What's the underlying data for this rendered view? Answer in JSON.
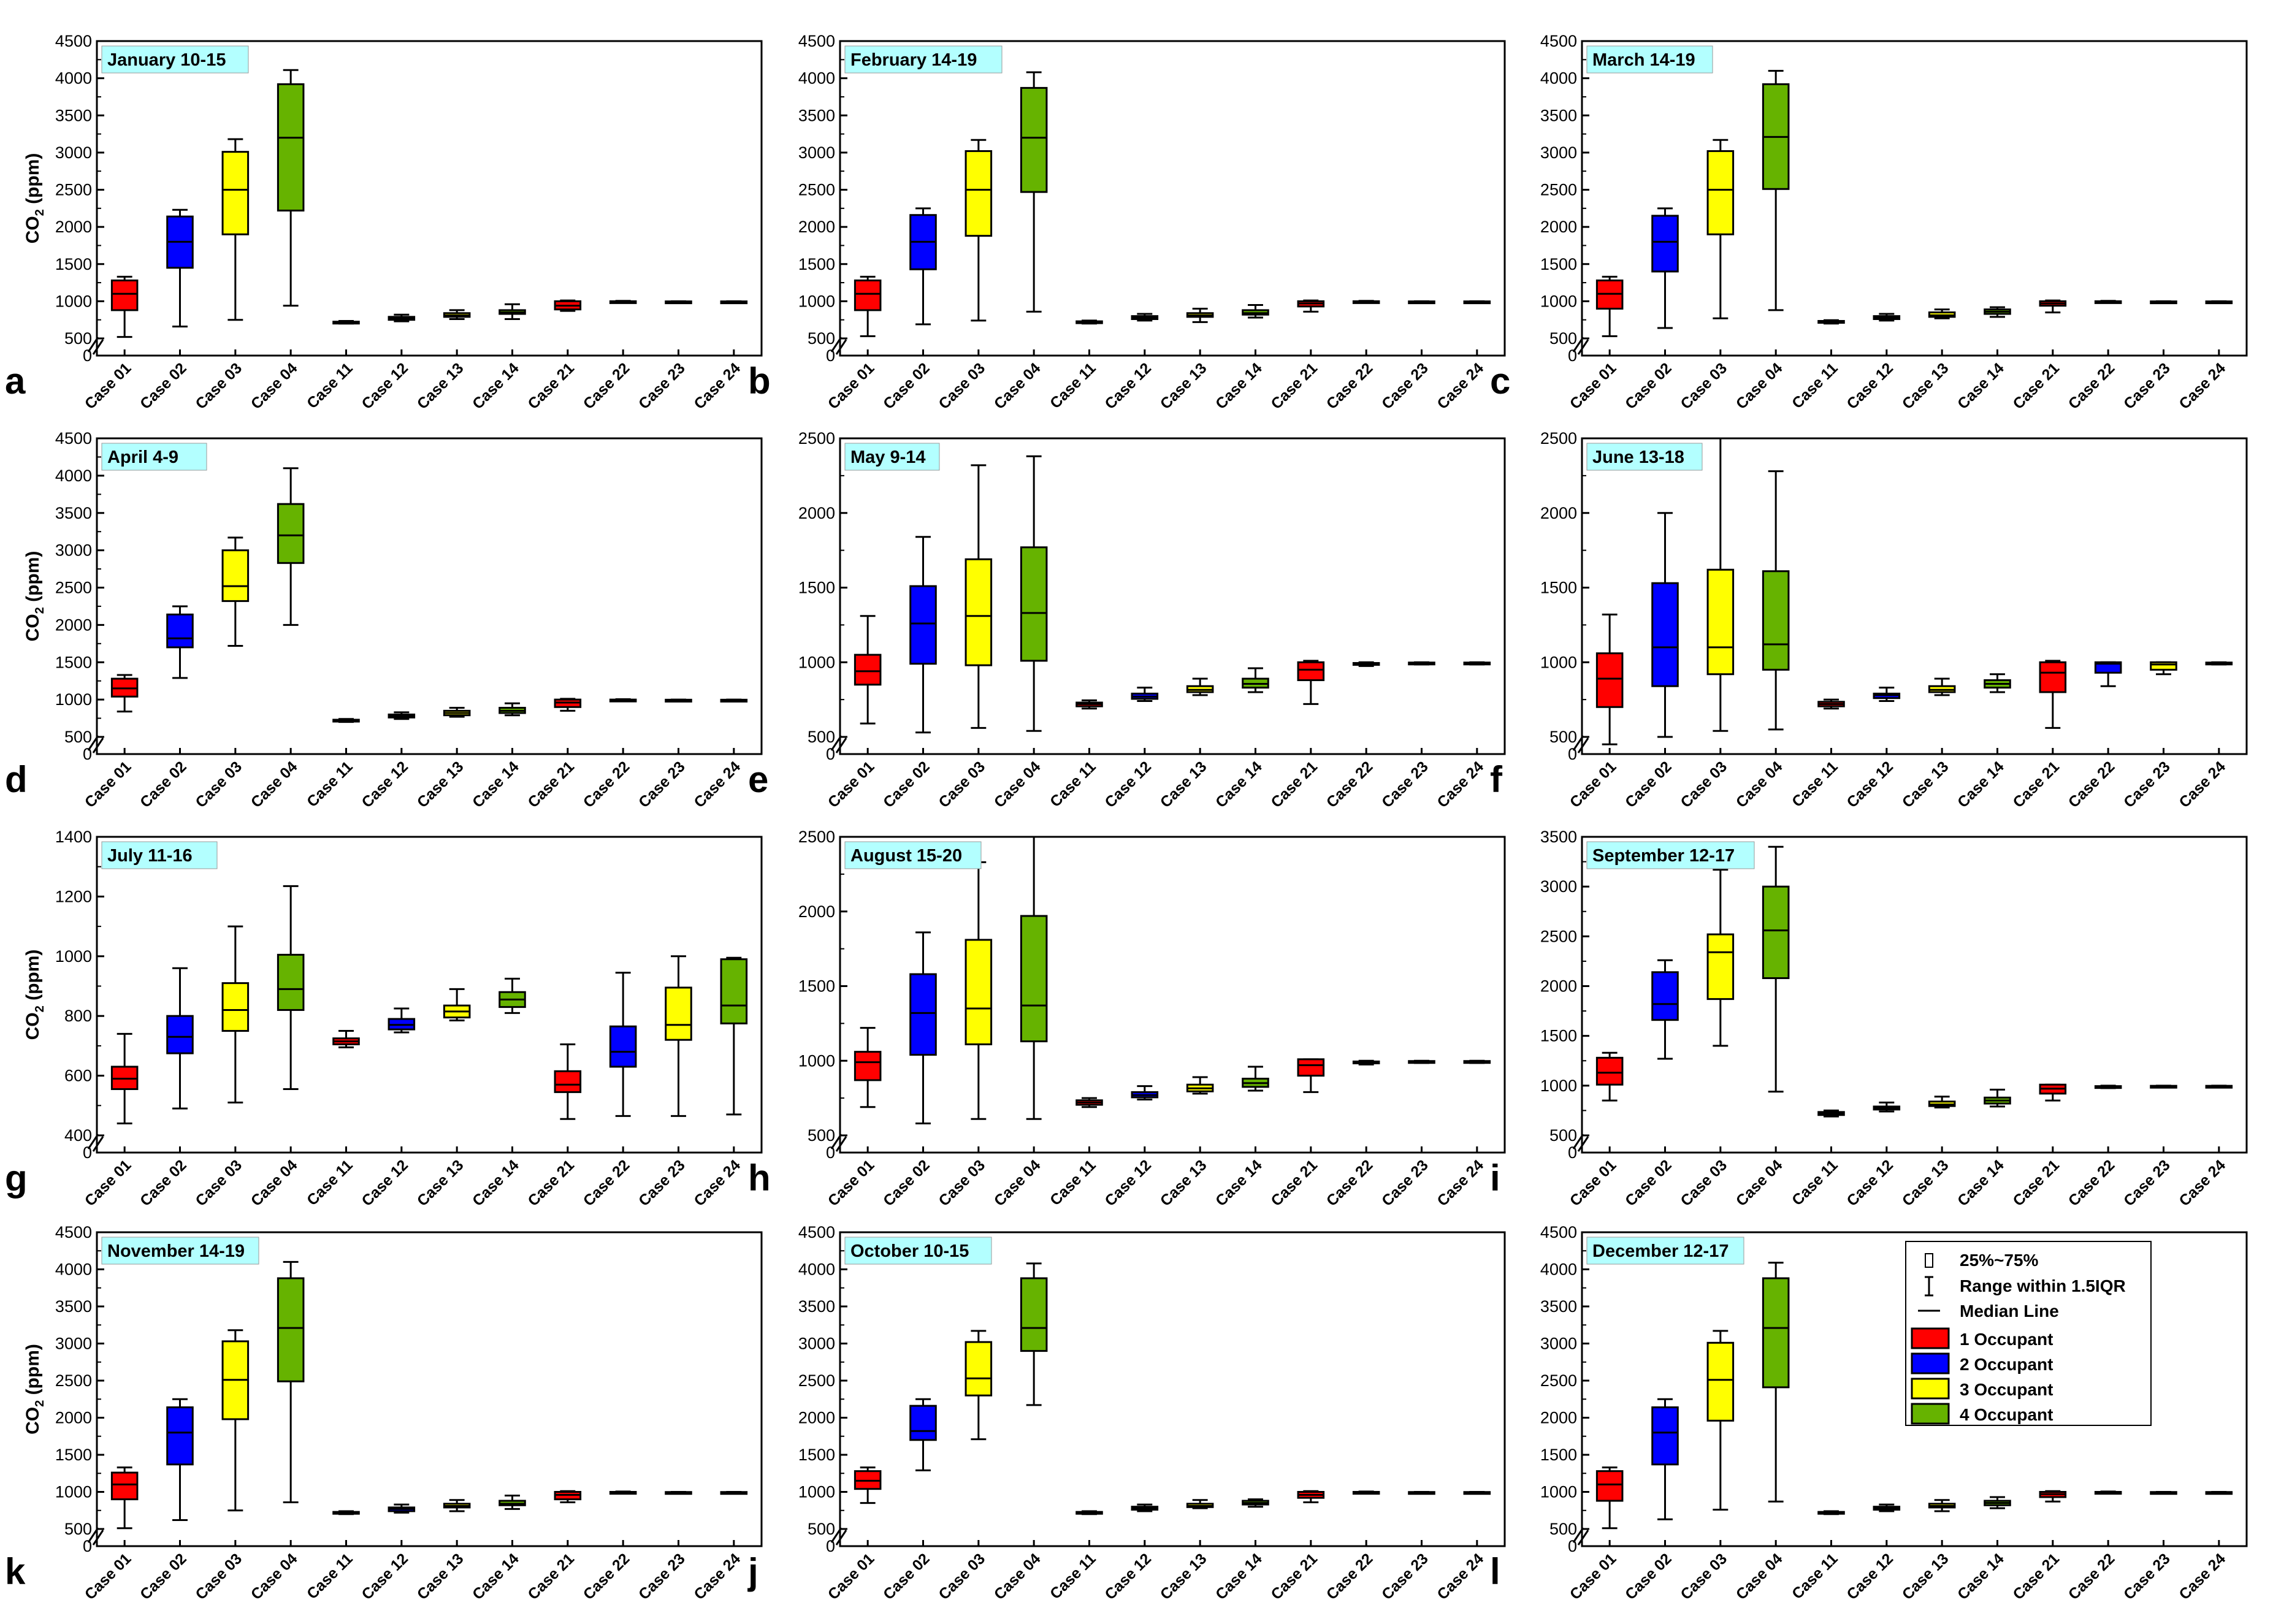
{
  "figure": {
    "categories": [
      "Case 01",
      "Case 02",
      "Case 03",
      "Case 04",
      "Case 11",
      "Case 12",
      "Case 13",
      "Case 14",
      "Case 21",
      "Case 22",
      "Case 23",
      "Case 24"
    ],
    "series_colors": [
      "#ff0000",
      "#0000ff",
      "#ffff00",
      "#66b300"
    ],
    "title_bg": "#b3ffff",
    "ylabel_main": "CO",
    "ylabel_sub": "2",
    "ylabel_unit": " (ppm)"
  },
  "legend": {
    "box_label": "25%~75%",
    "range_label": "Range within 1.5IQR",
    "median_label": "Median Line",
    "occupants": [
      "1 Occupant",
      "2 Occupant",
      "3 Occupant",
      "4 Occupant"
    ]
  },
  "chart_data": [
    {
      "type": "box",
      "letter": "a",
      "title": "January 10-15",
      "ymax": 4500,
      "yticks": [
        500,
        1000,
        1500,
        2000,
        2500,
        3000,
        3500,
        4000,
        4500
      ],
      "yzero": true,
      "breakBase": 500,
      "boxes": [
        [
          520,
          880,
          1100,
          1280,
          1330
        ],
        [
          660,
          1450,
          1800,
          2140,
          2230
        ],
        [
          750,
          1900,
          2500,
          3010,
          3180
        ],
        [
          940,
          2220,
          3200,
          3920,
          4110
        ],
        [
          700,
          710,
          715,
          725,
          735
        ],
        [
          730,
          750,
          770,
          790,
          820
        ],
        [
          760,
          790,
          810,
          840,
          880
        ],
        [
          760,
          830,
          850,
          880,
          960
        ],
        [
          870,
          890,
          940,
          1000,
          1010
        ],
        [
          985,
          990,
          995,
          1000,
          1005
        ],
        [
          990,
          992,
          995,
          998,
          1000
        ],
        [
          990,
          992,
          995,
          998,
          1000
        ]
      ]
    },
    {
      "type": "box",
      "letter": "b",
      "title": "February 14-19",
      "ymax": 4500,
      "yticks": [
        500,
        1000,
        1500,
        2000,
        2500,
        3000,
        3500,
        4000,
        4500
      ],
      "yzero": true,
      "breakBase": 500,
      "boxes": [
        [
          530,
          880,
          1100,
          1280,
          1330
        ],
        [
          690,
          1430,
          1800,
          2160,
          2250
        ],
        [
          740,
          1880,
          2500,
          3020,
          3170
        ],
        [
          860,
          2470,
          3200,
          3870,
          4080
        ],
        [
          700,
          710,
          720,
          730,
          740
        ],
        [
          740,
          760,
          780,
          800,
          830
        ],
        [
          720,
          790,
          810,
          840,
          900
        ],
        [
          780,
          820,
          840,
          880,
          950
        ],
        [
          860,
          930,
          970,
          1000,
          1010
        ],
        [
          985,
          990,
          995,
          1000,
          1005
        ],
        [
          990,
          992,
          995,
          998,
          1000
        ],
        [
          990,
          992,
          995,
          998,
          1000
        ]
      ]
    },
    {
      "type": "box",
      "letter": "c",
      "title": "March 14-19",
      "ymax": 4500,
      "yticks": [
        500,
        1000,
        1500,
        2000,
        2500,
        3000,
        3500,
        4000,
        4500
      ],
      "yzero": true,
      "breakBase": 500,
      "boxes": [
        [
          530,
          900,
          1100,
          1280,
          1330
        ],
        [
          640,
          1400,
          1800,
          2150,
          2250
        ],
        [
          770,
          1900,
          2500,
          3020,
          3170
        ],
        [
          880,
          2510,
          3210,
          3920,
          4100
        ],
        [
          700,
          710,
          720,
          735,
          745
        ],
        [
          740,
          760,
          780,
          800,
          830
        ],
        [
          770,
          790,
          810,
          850,
          890
        ],
        [
          790,
          830,
          860,
          890,
          920
        ],
        [
          850,
          940,
          970,
          1000,
          1010
        ],
        [
          985,
          990,
          995,
          1000,
          1005
        ],
        [
          990,
          992,
          995,
          998,
          1000
        ],
        [
          990,
          992,
          995,
          998,
          1000
        ]
      ]
    },
    {
      "type": "box",
      "letter": "d",
      "title": "April 4-9",
      "ymax": 4500,
      "yticks": [
        500,
        1000,
        1500,
        2000,
        2500,
        3000,
        3500,
        4000,
        4500
      ],
      "yzero": true,
      "breakBase": 500,
      "boxes": [
        [
          840,
          1040,
          1150,
          1280,
          1330
        ],
        [
          1290,
          1700,
          1820,
          2140,
          2250
        ],
        [
          1720,
          2320,
          2520,
          3000,
          3170
        ],
        [
          2000,
          2830,
          3200,
          3620,
          4100
        ],
        [
          700,
          710,
          720,
          730,
          740
        ],
        [
          740,
          760,
          780,
          800,
          830
        ],
        [
          770,
          790,
          820,
          850,
          890
        ],
        [
          790,
          820,
          850,
          890,
          950
        ],
        [
          850,
          900,
          960,
          1000,
          1010
        ],
        [
          985,
          990,
          995,
          1000,
          1005
        ],
        [
          990,
          992,
          995,
          998,
          1000
        ],
        [
          990,
          992,
          995,
          998,
          1000
        ]
      ]
    },
    {
      "type": "box",
      "letter": "e",
      "title": "May 9-14",
      "ymax": 2500,
      "yticks": [
        500,
        1000,
        1500,
        2000,
        2500
      ],
      "yzero": true,
      "breakBase": 500,
      "boxes": [
        [
          590,
          850,
          940,
          1050,
          1310
        ],
        [
          530,
          990,
          1260,
          1510,
          1840
        ],
        [
          560,
          980,
          1310,
          1690,
          2320
        ],
        [
          540,
          1010,
          1330,
          1770,
          2380
        ],
        [
          690,
          705,
          720,
          730,
          745
        ],
        [
          740,
          755,
          770,
          790,
          830
        ],
        [
          780,
          800,
          815,
          840,
          890
        ],
        [
          800,
          830,
          855,
          890,
          960
        ],
        [
          720,
          880,
          950,
          1000,
          1010
        ],
        [
          975,
          985,
          990,
          995,
          1000
        ],
        [
          985,
          990,
          995,
          998,
          1000
        ],
        [
          985,
          990,
          995,
          998,
          1000
        ]
      ]
    },
    {
      "type": "box",
      "letter": "f",
      "title": "June 13-18",
      "ymax": 2500,
      "yticks": [
        500,
        1000,
        1500,
        2000,
        2500
      ],
      "yzero": true,
      "breakBase": 500,
      "boxes": [
        [
          450,
          700,
          890,
          1060,
          1320
        ],
        [
          500,
          840,
          1100,
          1530,
          2000
        ],
        [
          540,
          920,
          1100,
          1620,
          2500
        ],
        [
          550,
          950,
          1120,
          1610,
          2280
        ],
        [
          690,
          705,
          720,
          735,
          750
        ],
        [
          740,
          760,
          780,
          790,
          830
        ],
        [
          780,
          800,
          815,
          840,
          890
        ],
        [
          800,
          830,
          855,
          880,
          920
        ],
        [
          560,
          800,
          930,
          1000,
          1010
        ],
        [
          840,
          930,
          990,
          1000,
          1000
        ],
        [
          920,
          950,
          985,
          1000,
          1000
        ],
        [
          985,
          990,
          995,
          998,
          1000
        ]
      ]
    },
    {
      "type": "box",
      "letter": "g",
      "title": "July 11-16",
      "ymax": 1400,
      "yticks": [
        400,
        600,
        800,
        1000,
        1200,
        1400
      ],
      "yzero": true,
      "breakBase": 400,
      "boxes": [
        [
          440,
          555,
          590,
          630,
          740
        ],
        [
          490,
          675,
          730,
          800,
          960
        ],
        [
          510,
          750,
          820,
          910,
          1100
        ],
        [
          555,
          820,
          890,
          1005,
          1235
        ],
        [
          695,
          705,
          715,
          725,
          750
        ],
        [
          745,
          755,
          770,
          790,
          825
        ],
        [
          785,
          795,
          815,
          835,
          890
        ],
        [
          810,
          830,
          855,
          880,
          925
        ],
        [
          455,
          545,
          570,
          615,
          705
        ],
        [
          465,
          630,
          680,
          765,
          945
        ],
        [
          465,
          720,
          770,
          895,
          1000
        ],
        [
          470,
          775,
          835,
          990,
          995
        ]
      ]
    },
    {
      "type": "box",
      "letter": "h",
      "title": "August 15-20",
      "ymax": 2500,
      "yticks": [
        500,
        1000,
        1500,
        2000,
        2500
      ],
      "yzero": true,
      "breakBase": 500,
      "boxes": [
        [
          690,
          870,
          990,
          1060,
          1220
        ],
        [
          580,
          1040,
          1320,
          1580,
          1860
        ],
        [
          610,
          1110,
          1350,
          1810,
          2330
        ],
        [
          610,
          1130,
          1370,
          1970,
          2500
        ],
        [
          690,
          705,
          720,
          735,
          750
        ],
        [
          740,
          755,
          770,
          790,
          830
        ],
        [
          780,
          795,
          815,
          840,
          890
        ],
        [
          800,
          825,
          850,
          880,
          960
        ],
        [
          790,
          900,
          970,
          1010,
          1010
        ],
        [
          975,
          985,
          990,
          995,
          1000
        ],
        [
          985,
          990,
          995,
          998,
          1000
        ],
        [
          985,
          990,
          995,
          998,
          1000
        ]
      ]
    },
    {
      "type": "box",
      "letter": "i",
      "title": "September 12-17",
      "ymax": 3500,
      "yticks": [
        500,
        1000,
        1500,
        2000,
        2500,
        3000,
        3500
      ],
      "yzero": true,
      "breakBase": 500,
      "boxes": [
        [
          850,
          1010,
          1130,
          1280,
          1330
        ],
        [
          1270,
          1660,
          1820,
          2140,
          2260
        ],
        [
          1400,
          1870,
          2340,
          2520,
          3170
        ],
        [
          940,
          2080,
          2560,
          3000,
          3400
        ],
        [
          690,
          705,
          720,
          735,
          750
        ],
        [
          740,
          760,
          775,
          790,
          830
        ],
        [
          780,
          795,
          810,
          840,
          890
        ],
        [
          790,
          820,
          850,
          880,
          960
        ],
        [
          850,
          920,
          970,
          1010,
          1010
        ],
        [
          975,
          985,
          990,
          995,
          1000
        ],
        [
          985,
          990,
          995,
          998,
          1000
        ],
        [
          985,
          990,
          995,
          998,
          1000
        ]
      ]
    },
    {
      "type": "box",
      "letter": "k",
      "title": "November 14-19",
      "ymax": 4500,
      "yticks": [
        500,
        1000,
        1500,
        2000,
        2500,
        3000,
        3500,
        4000,
        4500
      ],
      "yzero": true,
      "breakBase": 500,
      "boxes": [
        [
          510,
          900,
          1100,
          1260,
          1330
        ],
        [
          620,
          1370,
          1800,
          2140,
          2250
        ],
        [
          750,
          1980,
          2510,
          3030,
          3180
        ],
        [
          860,
          2490,
          3210,
          3880,
          4100
        ],
        [
          700,
          710,
          720,
          730,
          740
        ],
        [
          720,
          740,
          770,
          790,
          830
        ],
        [
          740,
          790,
          810,
          840,
          890
        ],
        [
          770,
          820,
          840,
          880,
          950
        ],
        [
          860,
          900,
          960,
          1000,
          1010
        ],
        [
          985,
          990,
          995,
          1000,
          1005
        ],
        [
          990,
          992,
          995,
          998,
          1000
        ],
        [
          990,
          992,
          995,
          998,
          1000
        ]
      ]
    },
    {
      "type": "box",
      "letter": "j",
      "title": "October 10-15",
      "ymax": 4500,
      "yticks": [
        500,
        1000,
        1500,
        2000,
        2500,
        3000,
        3500,
        4000,
        4500
      ],
      "yzero": true,
      "breakBase": 500,
      "boxes": [
        [
          850,
          1040,
          1150,
          1280,
          1330
        ],
        [
          1290,
          1700,
          1820,
          2160,
          2250
        ],
        [
          1710,
          2300,
          2530,
          3020,
          3170
        ],
        [
          2170,
          2900,
          3210,
          3880,
          4080
        ],
        [
          700,
          710,
          720,
          730,
          740
        ],
        [
          740,
          760,
          780,
          800,
          830
        ],
        [
          780,
          795,
          810,
          840,
          890
        ],
        [
          800,
          830,
          850,
          880,
          900
        ],
        [
          860,
          920,
          960,
          1000,
          1010
        ],
        [
          985,
          990,
          995,
          1000,
          1005
        ],
        [
          990,
          992,
          995,
          998,
          1000
        ],
        [
          990,
          992,
          995,
          998,
          1000
        ]
      ]
    },
    {
      "type": "box",
      "letter": "l",
      "title": "December 12-17",
      "ymax": 4500,
      "yticks": [
        500,
        1000,
        1500,
        2000,
        2500,
        3000,
        3500,
        4000,
        4500
      ],
      "yzero": true,
      "breakBase": 500,
      "boxes": [
        [
          510,
          880,
          1100,
          1280,
          1330
        ],
        [
          630,
          1370,
          1800,
          2140,
          2250
        ],
        [
          760,
          1960,
          2510,
          3010,
          3170
        ],
        [
          870,
          2410,
          3210,
          3880,
          4090
        ],
        [
          700,
          710,
          720,
          730,
          740
        ],
        [
          740,
          760,
          780,
          800,
          830
        ],
        [
          740,
          790,
          810,
          840,
          890
        ],
        [
          780,
          820,
          850,
          880,
          930
        ],
        [
          870,
          930,
          970,
          1000,
          1010
        ],
        [
          985,
          990,
          995,
          1000,
          1005
        ],
        [
          990,
          992,
          995,
          998,
          1000
        ],
        [
          990,
          992,
          995,
          998,
          1000
        ]
      ]
    }
  ]
}
